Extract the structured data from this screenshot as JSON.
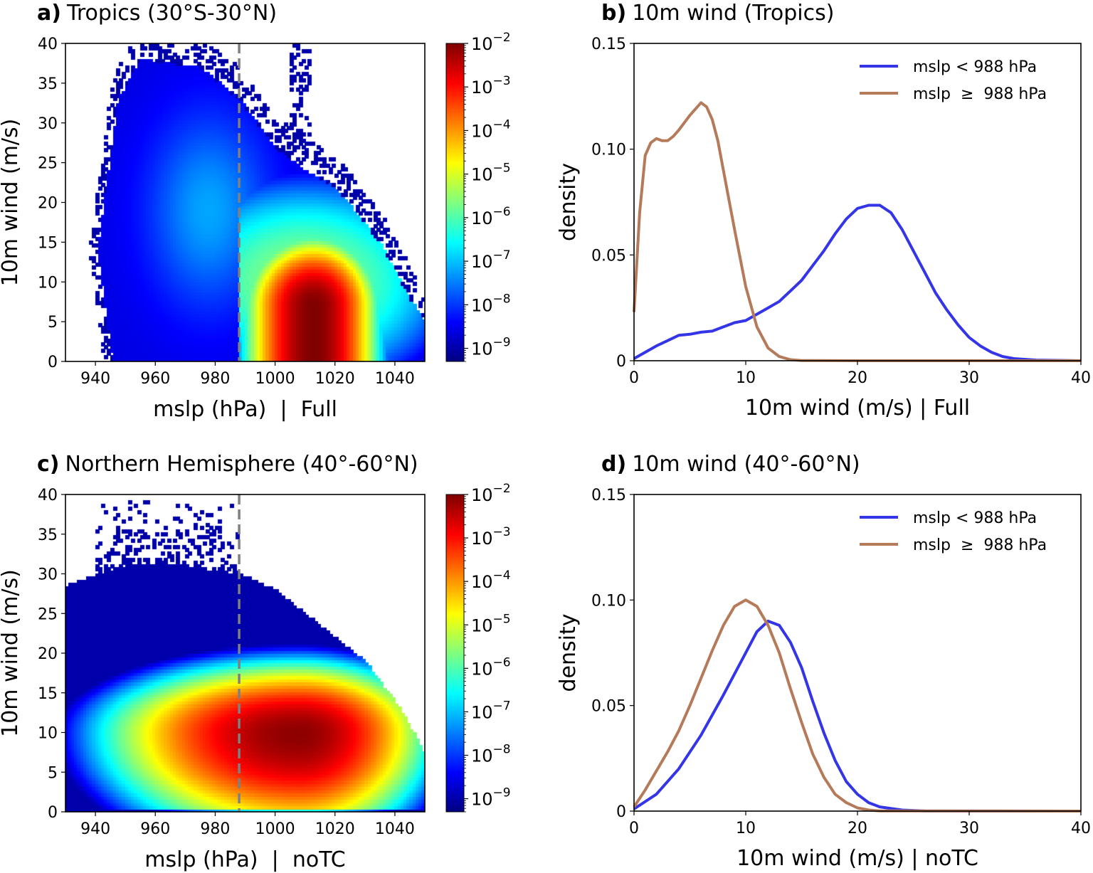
{
  "chart_data": [
    {
      "type": "heatmap",
      "panel_label": "a)",
      "title": "Tropics (30°S-30°N)",
      "xlabel": "mslp (hPa)  |  Full",
      "ylabel": "10m wind (m/s)",
      "xlim": [
        930,
        1050
      ],
      "ylim": [
        0,
        40
      ],
      "xticks": [
        940,
        960,
        980,
        1000,
        1020,
        1040
      ],
      "yticks": [
        0,
        5,
        10,
        15,
        20,
        25,
        30,
        35,
        40
      ],
      "colormap": "jet",
      "color_scale": "log",
      "colorbar_range": [
        5e-10,
        0.01
      ],
      "colorbar_tick_exponents": [
        -2,
        -3,
        -4,
        -5,
        -6,
        -7,
        -8,
        -9
      ],
      "colorbar_tick_base": "10",
      "vline": {
        "x": 988,
        "style": "dashed",
        "color": "#808080"
      },
      "peak": {
        "mslp": 1013,
        "wind": 5
      }
    },
    {
      "type": "line",
      "panel_label": "b)",
      "title": "10m wind (Tropics)",
      "xlabel": "10m wind (m/s) | Full",
      "ylabel": "density",
      "xlim": [
        0,
        40
      ],
      "ylim": [
        0,
        0.15
      ],
      "xticks": [
        "0",
        "10",
        "20",
        "30",
        "40"
      ],
      "yticks": [
        "0",
        "0.05",
        "0.10",
        "0.15"
      ],
      "legend_position": "top-right",
      "series": [
        {
          "name": "mslp < 988 hPa",
          "color": "#3535e8",
          "x": [
            0,
            1,
            2,
            3,
            4,
            5,
            6,
            7,
            8,
            9,
            10,
            11,
            12,
            13,
            14,
            15,
            16,
            17,
            18,
            19,
            20,
            21,
            22,
            23,
            24,
            25,
            26,
            27,
            28,
            29,
            30,
            31,
            32,
            33,
            34,
            36,
            40
          ],
          "y": [
            0.001,
            0.004,
            0.007,
            0.0095,
            0.012,
            0.0125,
            0.0135,
            0.014,
            0.016,
            0.018,
            0.019,
            0.022,
            0.025,
            0.028,
            0.033,
            0.038,
            0.045,
            0.052,
            0.06,
            0.067,
            0.072,
            0.0735,
            0.0735,
            0.07,
            0.062,
            0.052,
            0.042,
            0.032,
            0.024,
            0.017,
            0.011,
            0.007,
            0.004,
            0.002,
            0.001,
            0.0003,
            0
          ]
        },
        {
          "name": "mslp  ≥  988 hPa",
          "color": "#b57a5a",
          "x": [
            0,
            0.5,
            1,
            1.5,
            2,
            2.5,
            3,
            3.5,
            4,
            5,
            6,
            6.5,
            7,
            7.5,
            8,
            9,
            10,
            11,
            12,
            13,
            14,
            15,
            20,
            40
          ],
          "y": [
            0.023,
            0.07,
            0.097,
            0.103,
            0.105,
            0.104,
            0.104,
            0.106,
            0.109,
            0.116,
            0.122,
            0.12,
            0.114,
            0.104,
            0.09,
            0.062,
            0.035,
            0.016,
            0.006,
            0.002,
            0.0005,
            0.0001,
            0,
            0
          ]
        }
      ]
    },
    {
      "type": "heatmap",
      "panel_label": "c)",
      "title": "Northern Hemisphere (40°-60°N)",
      "xlabel": "mslp (hPa)  |  noTC",
      "ylabel": "10m wind (m/s)",
      "xlim": [
        930,
        1050
      ],
      "ylim": [
        0,
        40
      ],
      "xticks": [
        940,
        960,
        980,
        1000,
        1020,
        1040
      ],
      "yticks": [
        0,
        5,
        10,
        15,
        20,
        25,
        30,
        35,
        40
      ],
      "colormap": "jet",
      "color_scale": "log",
      "colorbar_range": [
        5e-10,
        0.01
      ],
      "colorbar_tick_exponents": [
        -2,
        -3,
        -4,
        -5,
        -6,
        -7,
        -8,
        -9
      ],
      "colorbar_tick_base": "10",
      "vline": {
        "x": 988,
        "style": "dashed",
        "color": "#808080"
      },
      "peak": {
        "mslp": 1008,
        "wind": 10
      }
    },
    {
      "type": "line",
      "panel_label": "d)",
      "title": "10m wind (40°-60°N)",
      "xlabel": "10m wind (m/s) | noTC",
      "ylabel": "density",
      "xlim": [
        0,
        40
      ],
      "ylim": [
        0,
        0.15
      ],
      "xticks": [
        "0",
        "10",
        "20",
        "30",
        "40"
      ],
      "yticks": [
        "0",
        "0.05",
        "0.10",
        "0.15"
      ],
      "legend_position": "top-right",
      "series": [
        {
          "name": "mslp < 988 hPa",
          "color": "#3535e8",
          "x": [
            0,
            2,
            4,
            6,
            8,
            10,
            11,
            12,
            13,
            14,
            15,
            16,
            17,
            18,
            19,
            20,
            21,
            22,
            24,
            26,
            40
          ],
          "y": [
            0.001,
            0.008,
            0.02,
            0.036,
            0.055,
            0.075,
            0.085,
            0.09,
            0.088,
            0.08,
            0.068,
            0.052,
            0.037,
            0.024,
            0.014,
            0.008,
            0.004,
            0.002,
            0.0005,
            0.0001,
            0
          ]
        },
        {
          "name": "mslp  ≥  988 hPa",
          "color": "#b57a5a",
          "x": [
            0,
            1,
            2,
            3,
            4,
            5,
            6,
            7,
            8,
            9,
            10,
            11,
            12,
            13,
            14,
            15,
            16,
            17,
            18,
            19,
            20,
            21,
            22,
            40
          ],
          "y": [
            0.002,
            0.01,
            0.019,
            0.028,
            0.038,
            0.05,
            0.063,
            0.076,
            0.088,
            0.097,
            0.1,
            0.097,
            0.088,
            0.075,
            0.058,
            0.042,
            0.027,
            0.016,
            0.008,
            0.004,
            0.0015,
            0.0005,
            0.0001,
            0
          ]
        }
      ]
    }
  ]
}
